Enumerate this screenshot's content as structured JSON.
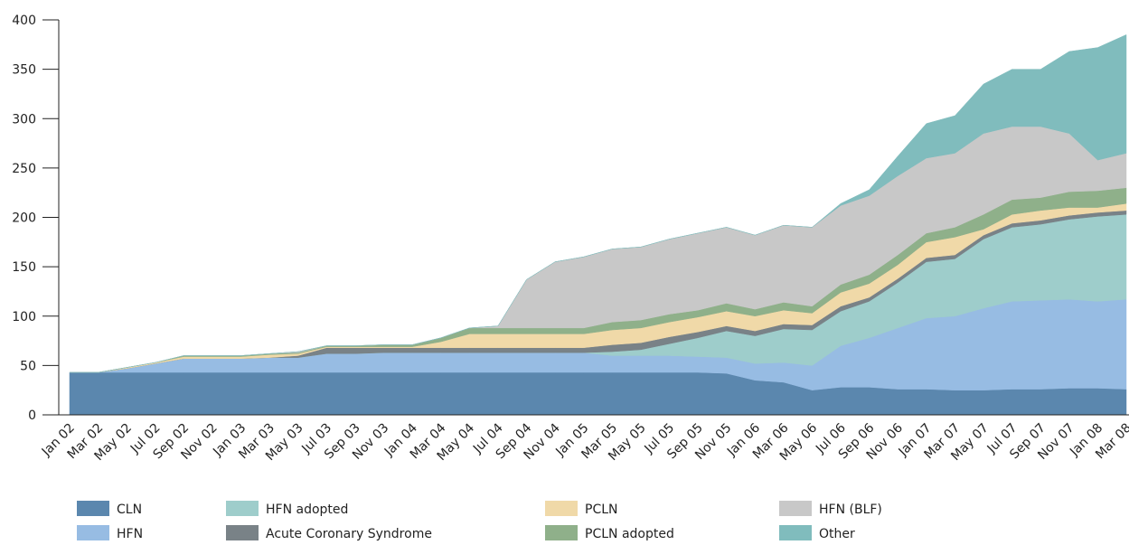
{
  "chart_data": {
    "type": "stacked_area",
    "categories": [
      "Jan 02",
      "Mar 02",
      "May 02",
      "Jul 02",
      "Sep 02",
      "Nov 02",
      "Jan 03",
      "Mar 03",
      "May 03",
      "Jul 03",
      "Sep 03",
      "Nov 03",
      "Jan 04",
      "Mar 04",
      "May 04",
      "Jul 04",
      "Sep 04",
      "Nov 04",
      "Jan 05",
      "Mar 05",
      "May 05",
      "Jul 05",
      "Sep 05",
      "Nov 05",
      "Jan 06",
      "Mar 06",
      "May 06",
      "Jul 06",
      "Sep 06",
      "Nov 06",
      "Jan 07",
      "Mar 07",
      "May 07",
      "Jul 07",
      "Sep 07",
      "Nov 07",
      "Jan 08",
      "Mar 08"
    ],
    "series": [
      {
        "name": "CLN",
        "color": "#5b87ae",
        "values": [
          43,
          43,
          43,
          43,
          43,
          43,
          43,
          43,
          43,
          43,
          43,
          43,
          43,
          43,
          43,
          43,
          43,
          43,
          43,
          43,
          43,
          43,
          43,
          42,
          35,
          33,
          25,
          28,
          28,
          26,
          26,
          25,
          25,
          26,
          26,
          27,
          27,
          26
        ]
      },
      {
        "name": "HFN",
        "color": "#97bce3",
        "values": [
          0,
          0,
          4,
          9,
          14,
          14,
          14,
          15,
          15,
          19,
          19,
          20,
          20,
          20,
          20,
          20,
          20,
          20,
          20,
          17,
          17,
          17,
          16,
          16,
          17,
          20,
          25,
          42,
          50,
          62,
          72,
          75,
          83,
          89,
          90,
          90,
          88,
          91
        ]
      },
      {
        "name": "HFN adopted",
        "color": "#9ecdcb",
        "values": [
          0,
          0,
          0,
          0,
          0,
          0,
          0,
          0,
          0,
          0,
          0,
          0,
          0,
          0,
          0,
          0,
          0,
          0,
          0,
          4,
          6,
          12,
          19,
          27,
          28,
          34,
          36,
          35,
          37,
          46,
          57,
          58,
          70,
          75,
          77,
          81,
          86,
          86
        ]
      },
      {
        "name": "Acute Coronary Syndrome",
        "color": "#798287",
        "values": [
          0,
          0,
          0,
          0,
          0,
          0,
          0,
          0,
          2,
          6,
          6,
          5,
          5,
          5,
          5,
          5,
          5,
          5,
          5,
          7,
          7,
          7,
          6,
          5,
          5,
          5,
          5,
          5,
          4,
          4,
          4,
          4,
          4,
          4,
          4,
          4,
          4,
          4
        ]
      },
      {
        "name": "PCLN",
        "color": "#f0d9a8",
        "values": [
          0,
          0,
          1,
          1,
          2,
          2,
          2,
          3,
          2,
          1,
          1,
          1,
          1,
          6,
          14,
          14,
          14,
          14,
          14,
          15,
          15,
          15,
          15,
          15,
          15,
          14,
          12,
          14,
          14,
          14,
          16,
          18,
          6,
          9,
          10,
          8,
          5,
          7
        ]
      },
      {
        "name": "PCLN adopted",
        "color": "#8fb08a",
        "values": [
          0,
          0,
          0,
          0,
          1,
          1,
          1,
          1,
          1,
          1,
          1,
          2,
          2,
          4,
          6,
          6,
          6,
          6,
          6,
          8,
          8,
          8,
          7,
          8,
          7,
          8,
          7,
          8,
          9,
          10,
          9,
          10,
          15,
          15,
          13,
          16,
          17,
          16
        ]
      },
      {
        "name": "HFN (BLF)",
        "color": "#c8c8c8",
        "values": [
          0,
          0,
          0,
          0,
          0,
          0,
          0,
          0,
          1,
          0,
          0,
          0,
          0,
          0,
          0,
          2,
          49,
          67,
          72,
          74,
          74,
          76,
          78,
          77,
          75,
          78,
          80,
          80,
          80,
          80,
          76,
          75,
          82,
          74,
          72,
          59,
          31,
          35
        ]
      },
      {
        "name": "Other",
        "color": "#80bcbd",
        "values": [
          0,
          0,
          0,
          0,
          0,
          0,
          0,
          0,
          0,
          0,
          0,
          0,
          0,
          0,
          0,
          0,
          0,
          0,
          0,
          0,
          0,
          0,
          0,
          0,
          0,
          0,
          0,
          2,
          6,
          20,
          35,
          38,
          50,
          58,
          58,
          83,
          114,
          120
        ]
      }
    ],
    "ylim": [
      0,
      400
    ],
    "yticks": [
      0,
      50,
      100,
      150,
      200,
      250,
      300,
      350,
      400
    ]
  }
}
